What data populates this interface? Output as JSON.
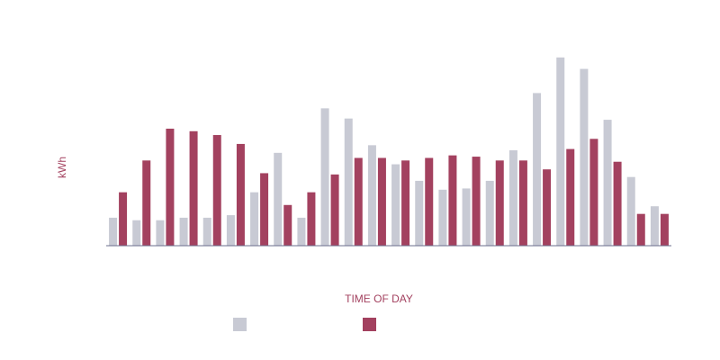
{
  "chart_data": {
    "type": "bar",
    "xlabel": "TIME OF DAY",
    "ylabel": "kWh",
    "ylim": [
      0,
      1.5
    ],
    "grid": false,
    "legend_position": "bottom-center",
    "categories": [
      "",
      "",
      "",
      "",
      "",
      "",
      "",
      "",
      "",
      "",
      "",
      "",
      "",
      "",
      "",
      "",
      "",
      "",
      "",
      "",
      "",
      "",
      "",
      ""
    ],
    "series": [
      {
        "color": "#c8cad4",
        "values": [
          0.22,
          0.2,
          0.2,
          0.22,
          0.22,
          0.24,
          0.42,
          0.73,
          0.22,
          1.08,
          1.0,
          0.79,
          0.64,
          0.51,
          0.44,
          0.45,
          0.51,
          0.75,
          1.2,
          1.48,
          1.39,
          0.99,
          0.54,
          0.31
        ]
      },
      {
        "color": "#a3415f",
        "values": [
          0.42,
          0.67,
          0.92,
          0.9,
          0.87,
          0.8,
          0.57,
          0.32,
          0.42,
          0.56,
          0.69,
          0.69,
          0.67,
          0.69,
          0.71,
          0.7,
          0.67,
          0.67,
          0.6,
          0.76,
          0.84,
          0.66,
          0.25,
          0.25
        ]
      }
    ],
    "colors": {
      "axis": "#6b6f8e",
      "title": "#a3415f"
    }
  }
}
